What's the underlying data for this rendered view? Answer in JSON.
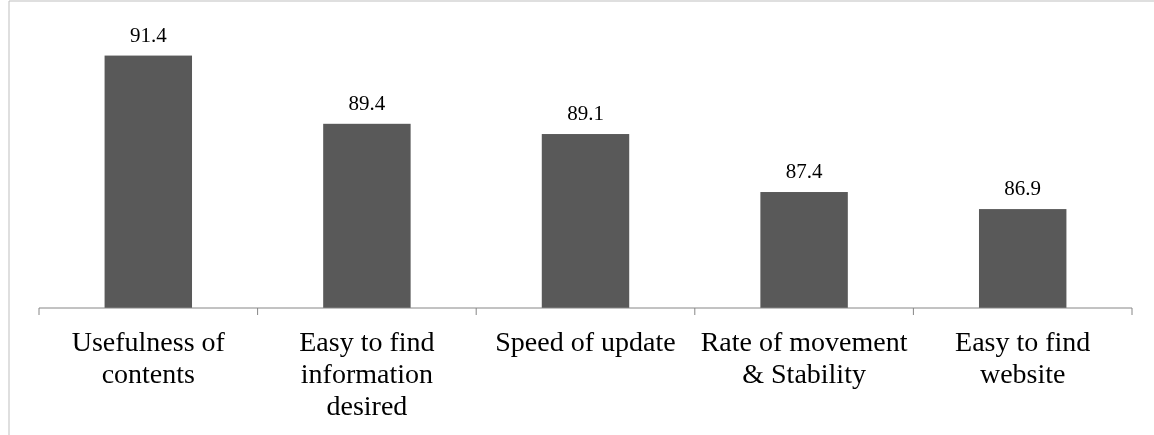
{
  "chart_data": {
    "type": "bar",
    "categories": [
      "Usefulness of contents",
      "Easy to find information desired",
      "Speed of update",
      "Rate of movement & Stability",
      "Easy to find website"
    ],
    "values": [
      91.4,
      89.4,
      89.1,
      87.4,
      86.9
    ],
    "color": "#595959",
    "ylim": [
      84.0,
      93.0
    ],
    "data_labels": true
  }
}
